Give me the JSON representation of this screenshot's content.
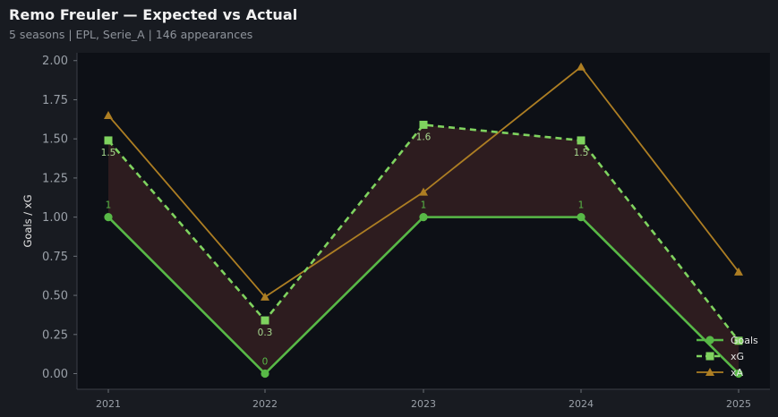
{
  "header": {
    "title": "Remo Freuler — Expected vs Actual",
    "subtitle": "5 seasons | EPL, Serie_A | 146 appearances"
  },
  "colors": {
    "background": "#181b21",
    "plot_bg": "#0d1016",
    "goals": "#58b947",
    "xg": "#7fd35f",
    "xa": "#ad7e23",
    "fill": "#2f1d20"
  },
  "chart_data": {
    "type": "line",
    "x": [
      "2021",
      "2022",
      "2023",
      "2024",
      "2025"
    ],
    "ylabel": "Goals / xG",
    "ylim": [
      -0.1,
      2.05
    ],
    "yticks": [
      "0.00",
      "0.25",
      "0.50",
      "0.75",
      "1.00",
      "1.25",
      "1.50",
      "1.75",
      "2.00"
    ],
    "grid": false,
    "legend": "lower-right",
    "series": [
      {
        "name": "Goals",
        "values": [
          1,
          0,
          1,
          1,
          0
        ],
        "labels": [
          "1",
          "0",
          "1",
          "1",
          ""
        ],
        "style": "solid",
        "marker": "circle"
      },
      {
        "name": "xG",
        "values": [
          1.49,
          0.34,
          1.59,
          1.49,
          0.21
        ],
        "labels": [
          "1.5",
          "0.3",
          "1.6",
          "1.5",
          ""
        ],
        "style": "dashed",
        "marker": "square"
      },
      {
        "name": "xA",
        "values": [
          1.65,
          0.49,
          1.16,
          1.96,
          0.65
        ],
        "labels": [
          "",
          "",
          "",
          "",
          ""
        ],
        "style": "solid",
        "marker": "triangle"
      }
    ]
  }
}
